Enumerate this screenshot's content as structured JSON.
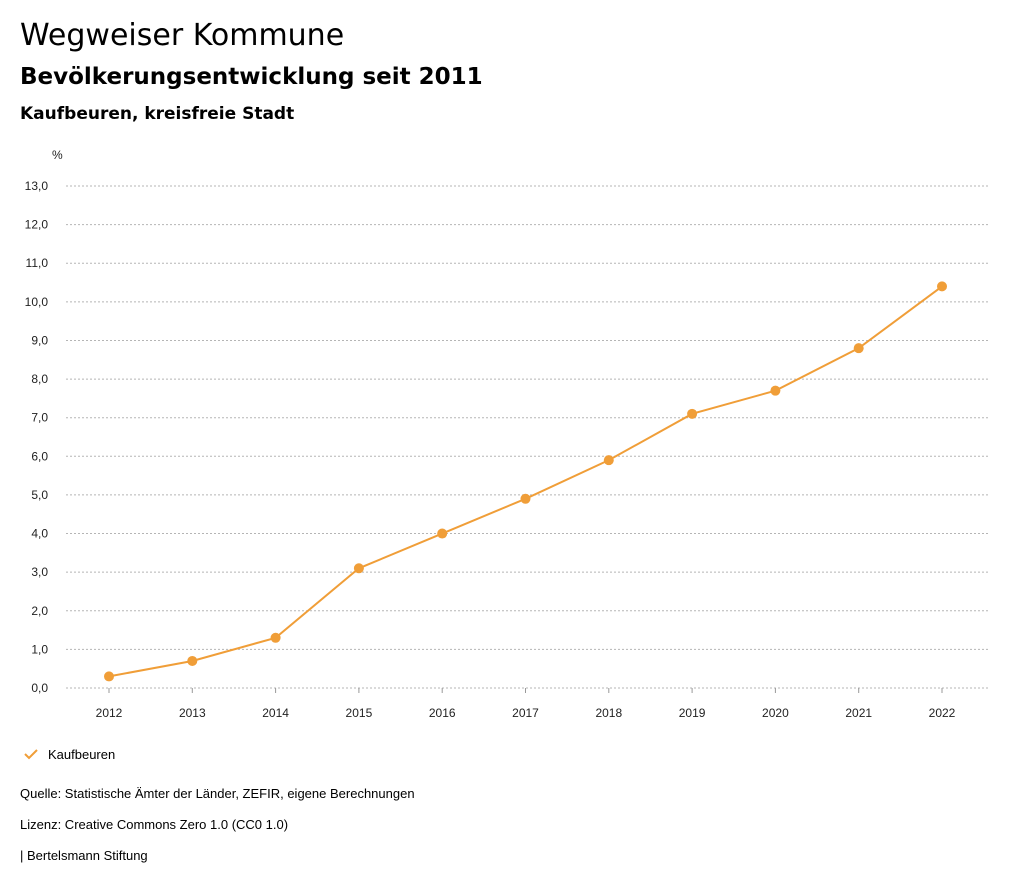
{
  "header": {
    "title": "Wegweiser Kommune",
    "subtitle": "Bevölkerungsentwicklung seit 2011",
    "region": "Kaufbeuren, kreisfreie Stadt"
  },
  "colors": {
    "series": "#f09e38",
    "grid": "#b5b5b5"
  },
  "chart_data": {
    "type": "line",
    "title": "Bevölkerungsentwicklung seit 2011",
    "ylabel": "%",
    "categories": [
      "2012",
      "2013",
      "2014",
      "2015",
      "2016",
      "2017",
      "2018",
      "2019",
      "2020",
      "2021",
      "2022"
    ],
    "series": [
      {
        "name": "Kaufbeuren",
        "values": [
          0.3,
          0.7,
          1.3,
          3.1,
          4.0,
          4.9,
          5.9,
          7.1,
          7.7,
          8.8,
          10.4
        ]
      }
    ],
    "ylim": [
      0,
      13
    ],
    "yticks": [
      "0,0",
      "1,0",
      "2,0",
      "3,0",
      "4,0",
      "5,0",
      "6,0",
      "7,0",
      "8,0",
      "9,0",
      "10,0",
      "11,0",
      "12,0",
      "13,0"
    ],
    "grid": true,
    "legend_position": "bottom-left"
  },
  "legend": {
    "icon": "check-icon",
    "label": "Kaufbeuren"
  },
  "footer": {
    "source": "Quelle: Statistische Ämter der Länder, ZEFIR, eigene Berechnungen",
    "license": "Lizenz: Creative Commons Zero 1.0 (CC0 1.0)",
    "publisher": "| Bertelsmann Stiftung"
  }
}
